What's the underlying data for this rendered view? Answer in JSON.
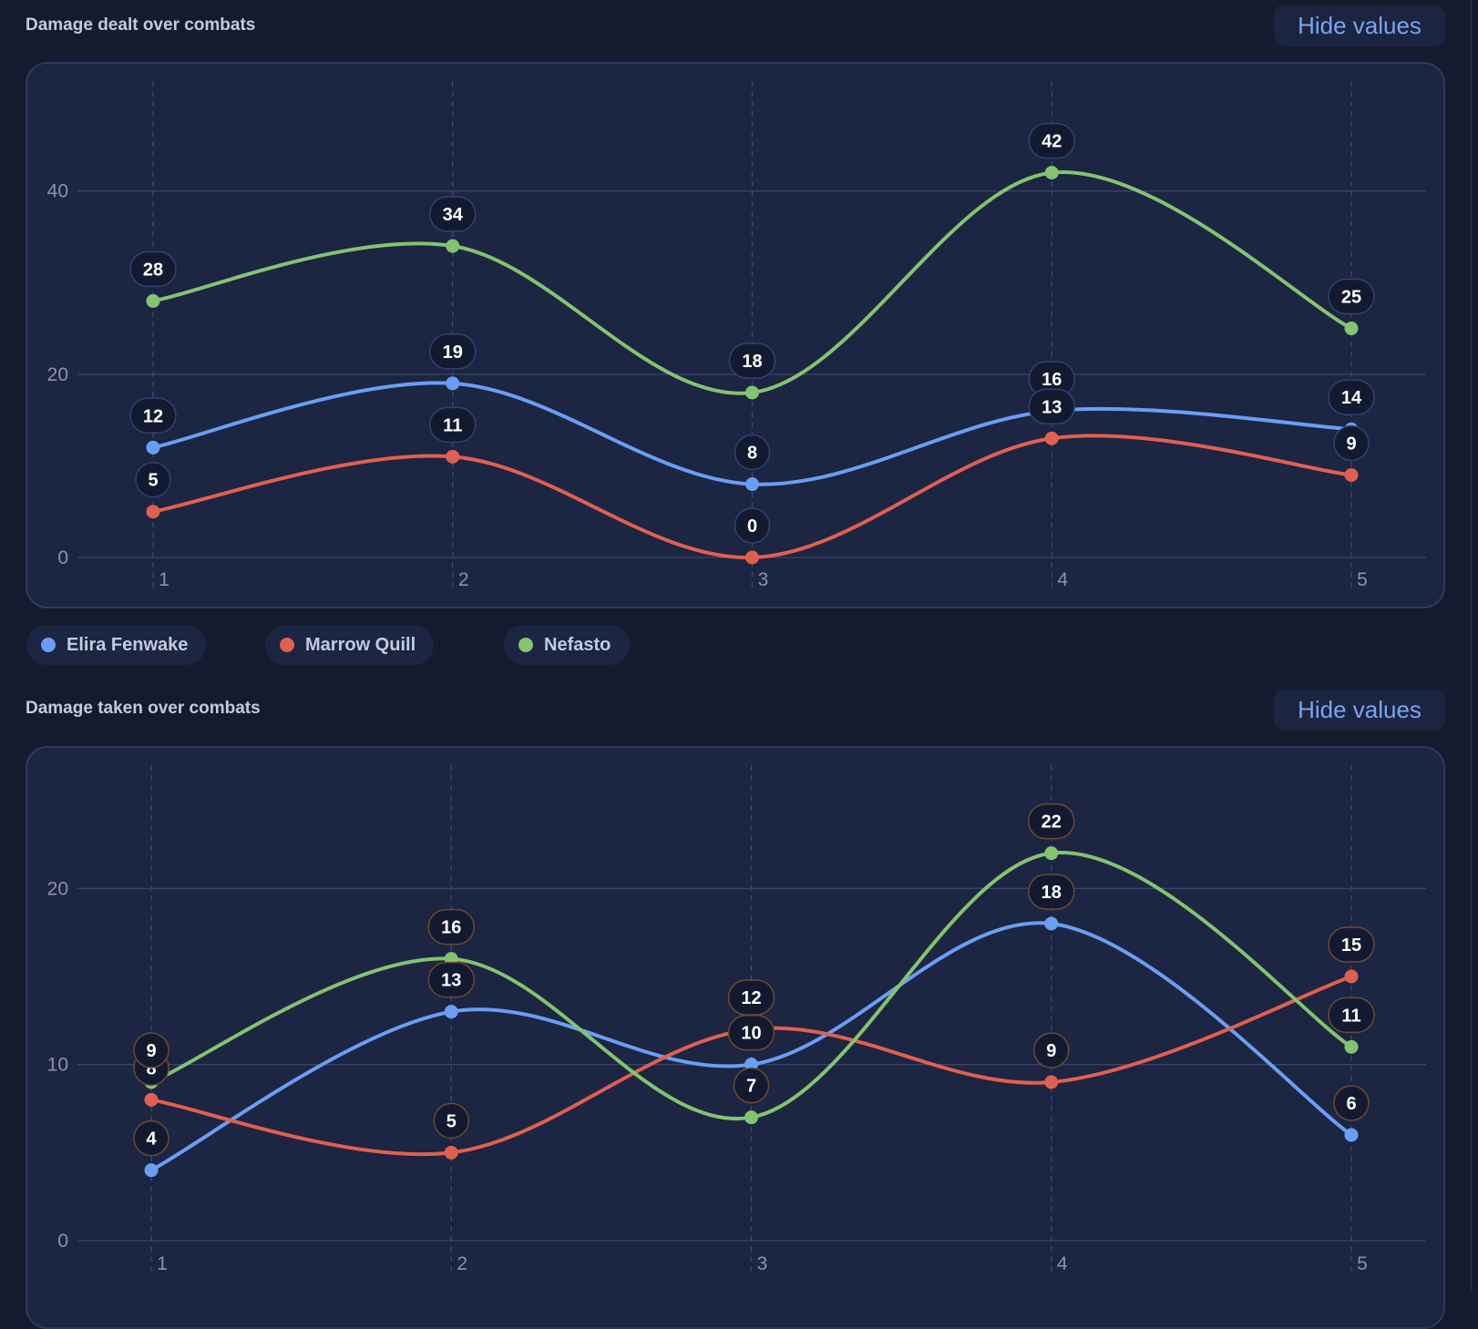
{
  "legend": [
    {
      "name": "Elira Fenwake",
      "color": "#6a9ef5"
    },
    {
      "name": "Marrow Quill",
      "color": "#e0604f"
    },
    {
      "name": "Nefasto",
      "color": "#82c46f"
    }
  ],
  "chart_data": [
    {
      "type": "line",
      "title": "Damage dealt over combats",
      "button_label": "Hide values",
      "x": [
        1,
        2,
        3,
        4,
        5
      ],
      "x_ticks": [
        "1",
        "2",
        "3",
        "4",
        "5"
      ],
      "y_ticks": [
        0,
        20,
        40
      ],
      "ylim": [
        0,
        52
      ],
      "grid": true,
      "label_border": "#2f4472",
      "series": [
        {
          "name": "Elira Fenwake",
          "color": "#6a9ef5",
          "values": [
            12,
            19,
            8,
            16,
            14
          ]
        },
        {
          "name": "Marrow Quill",
          "color": "#e0604f",
          "values": [
            5,
            11,
            0,
            13,
            9
          ]
        },
        {
          "name": "Nefasto",
          "color": "#82c46f",
          "values": [
            28,
            34,
            18,
            42,
            25
          ]
        }
      ]
    },
    {
      "type": "line",
      "title": "Damage taken over combats",
      "button_label": "Hide values",
      "x": [
        1,
        2,
        3,
        4,
        5
      ],
      "x_ticks": [
        "1",
        "2",
        "3",
        "4",
        "5"
      ],
      "y_ticks": [
        0,
        10,
        20
      ],
      "ylim": [
        0,
        27
      ],
      "grid": true,
      "label_border": "#6b4a34",
      "series": [
        {
          "name": "Elira Fenwake",
          "color": "#6a9ef5",
          "values": [
            4,
            13,
            10,
            18,
            6
          ]
        },
        {
          "name": "Marrow Quill",
          "color": "#e0604f",
          "values": [
            8,
            5,
            12,
            9,
            15
          ]
        },
        {
          "name": "Nefasto",
          "color": "#82c46f",
          "values": [
            9,
            16,
            7,
            22,
            11
          ]
        }
      ]
    }
  ]
}
